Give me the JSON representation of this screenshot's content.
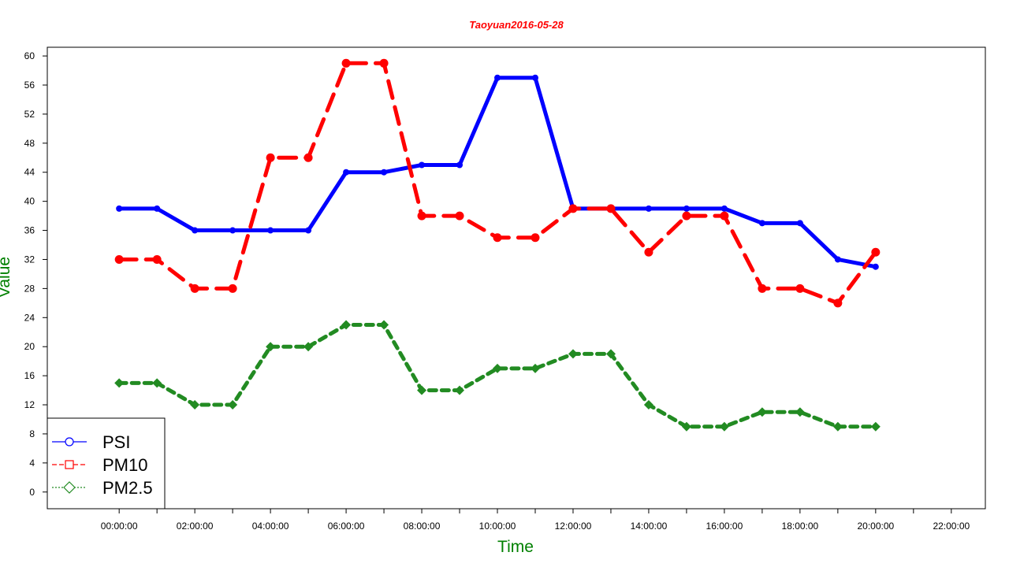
{
  "chart_data": {
    "type": "line",
    "title": "Taoyuan2016-05-28",
    "xlabel": "Time",
    "ylabel": "Value",
    "x_ticks": [
      "00:00:00",
      "02:00:00",
      "04:00:00",
      "06:00:00",
      "08:00:00",
      "10:00:00",
      "12:00:00",
      "14:00:00",
      "16:00:00",
      "18:00:00",
      "20:00:00",
      "22:00:00"
    ],
    "y_ticks": [
      0,
      4,
      8,
      12,
      16,
      20,
      24,
      28,
      32,
      36,
      40,
      44,
      48,
      52,
      56,
      60
    ],
    "xlim_hours": [
      -1.9,
      22.9
    ],
    "ylim": [
      -2.3,
      61.2
    ],
    "x_hours": [
      0,
      1,
      2,
      3,
      4,
      5,
      6,
      7,
      8,
      9,
      10,
      11,
      12,
      13,
      14,
      15,
      16,
      17,
      18,
      19,
      20
    ],
    "series": [
      {
        "name": "PSI",
        "color": "#0000ff",
        "style": "solid",
        "marker": "circle",
        "values": [
          39,
          39,
          36,
          36,
          36,
          36,
          44,
          44,
          45,
          45,
          57,
          57,
          39,
          39,
          39,
          39,
          39,
          37,
          37,
          32,
          31
        ]
      },
      {
        "name": "PM10",
        "color": "#ff0000",
        "style": "dashed",
        "marker": "square",
        "values": [
          32,
          32,
          28,
          28,
          46,
          46,
          59,
          59,
          38,
          38,
          35,
          35,
          39,
          39,
          33,
          38,
          38,
          28,
          28,
          26,
          33
        ]
      },
      {
        "name": "PM2.5",
        "color": "#228b22",
        "style": "dotted",
        "marker": "diamond",
        "values": [
          15,
          15,
          12,
          12,
          20,
          20,
          23,
          23,
          14,
          14,
          17,
          17,
          19,
          19,
          12,
          9,
          9,
          11,
          11,
          9,
          9
        ]
      }
    ],
    "legend_position": "bottom-left",
    "grid": false,
    "colors": {
      "title": "#ff0000",
      "axis_title": "#008000"
    }
  }
}
